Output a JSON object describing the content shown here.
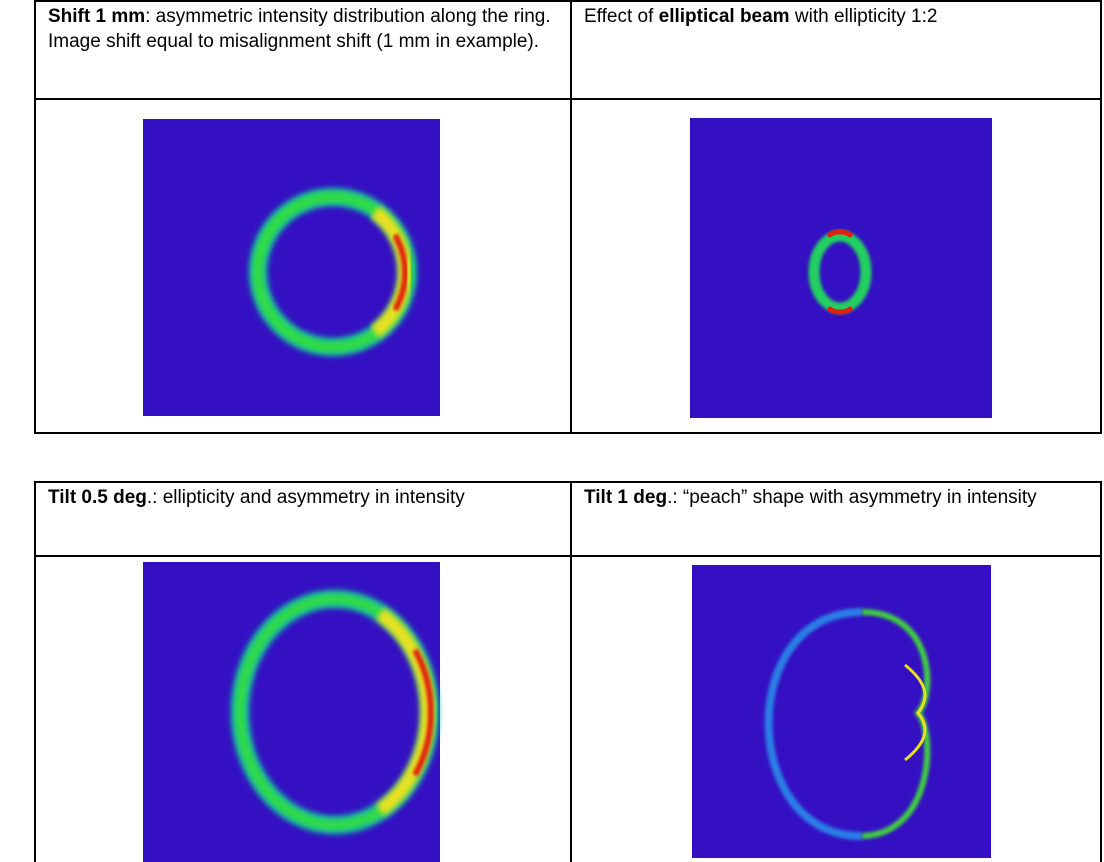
{
  "tables": [
    {
      "cells": [
        {
          "segments": [
            {
              "text": "Shift 1 mm",
              "bold": true
            },
            {
              "text": ": asymmetric intensity distribution along the ring. Image shift equal to misalignment shift (1 mm in example).",
              "bold": false
            }
          ]
        },
        {
          "segments": [
            {
              "text": "Effect of ",
              "bold": false
            },
            {
              "text": "elliptical beam",
              "bold": true
            },
            {
              "text": " with ellipticity 1:2",
              "bold": false
            }
          ]
        }
      ]
    },
    {
      "cells": [
        {
          "segments": [
            {
              "text": "Tilt 0.5 deg",
              "bold": true
            },
            {
              "text": ".: ellipticity and asymmetry in intensity",
              "bold": false
            }
          ]
        },
        {
          "segments": [
            {
              "text": "Tilt 1 deg",
              "bold": true
            },
            {
              "text": ".: “peach” shape with asymmetry in intensity",
              "bold": false
            }
          ]
        }
      ]
    }
  ]
}
